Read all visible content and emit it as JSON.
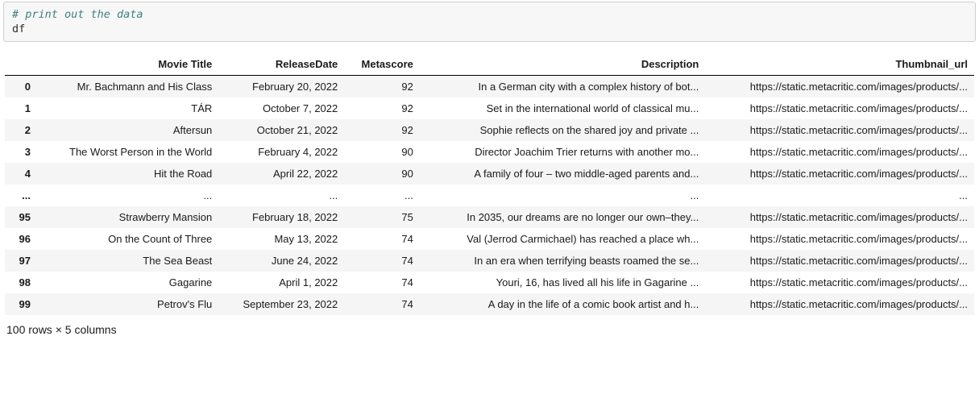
{
  "code_cell": {
    "comment_line": "# print out the data",
    "code_line": "df"
  },
  "table": {
    "columns": [
      "Movie Title",
      "ReleaseDate",
      "Metascore",
      "Description",
      "Thumbnail_url"
    ],
    "rows": [
      {
        "idx": "0",
        "cells": [
          "Mr. Bachmann and His Class",
          "February 20, 2022",
          "92",
          "In a German city with a complex history of bot...",
          "https://static.metacritic.com/images/products/..."
        ]
      },
      {
        "idx": "1",
        "cells": [
          "TÁR",
          "October 7, 2022",
          "92",
          "Set in the international world of classical mu...",
          "https://static.metacritic.com/images/products/..."
        ]
      },
      {
        "idx": "2",
        "cells": [
          "Aftersun",
          "October 21, 2022",
          "92",
          "Sophie reflects on the shared joy and private ...",
          "https://static.metacritic.com/images/products/..."
        ]
      },
      {
        "idx": "3",
        "cells": [
          "The Worst Person in the World",
          "February 4, 2022",
          "90",
          "Director Joachim Trier returns with another mo...",
          "https://static.metacritic.com/images/products/..."
        ]
      },
      {
        "idx": "4",
        "cells": [
          "Hit the Road",
          "April 22, 2022",
          "90",
          "A family of four – two middle-aged parents and...",
          "https://static.metacritic.com/images/products/..."
        ]
      },
      {
        "idx": "...",
        "cells": [
          "...",
          "...",
          "...",
          "...",
          "..."
        ]
      },
      {
        "idx": "95",
        "cells": [
          "Strawberry Mansion",
          "February 18, 2022",
          "75",
          "In 2035, our dreams are no longer our own–they...",
          "https://static.metacritic.com/images/products/..."
        ]
      },
      {
        "idx": "96",
        "cells": [
          "On the Count of Three",
          "May 13, 2022",
          "74",
          "Val (Jerrod Carmichael) has reached a place wh...",
          "https://static.metacritic.com/images/products/..."
        ]
      },
      {
        "idx": "97",
        "cells": [
          "The Sea Beast",
          "June 24, 2022",
          "74",
          "In an era when terrifying beasts roamed the se...",
          "https://static.metacritic.com/images/products/..."
        ]
      },
      {
        "idx": "98",
        "cells": [
          "Gagarine",
          "April 1, 2022",
          "74",
          "Youri, 16, has lived all his life in Gagarine ...",
          "https://static.metacritic.com/images/products/..."
        ]
      },
      {
        "idx": "99",
        "cells": [
          "Petrov's Flu",
          "September 23, 2022",
          "74",
          "A day in the life of a comic book artist and h...",
          "https://static.metacritic.com/images/products/..."
        ]
      }
    ]
  },
  "shape_text": "100 rows × 5 columns"
}
